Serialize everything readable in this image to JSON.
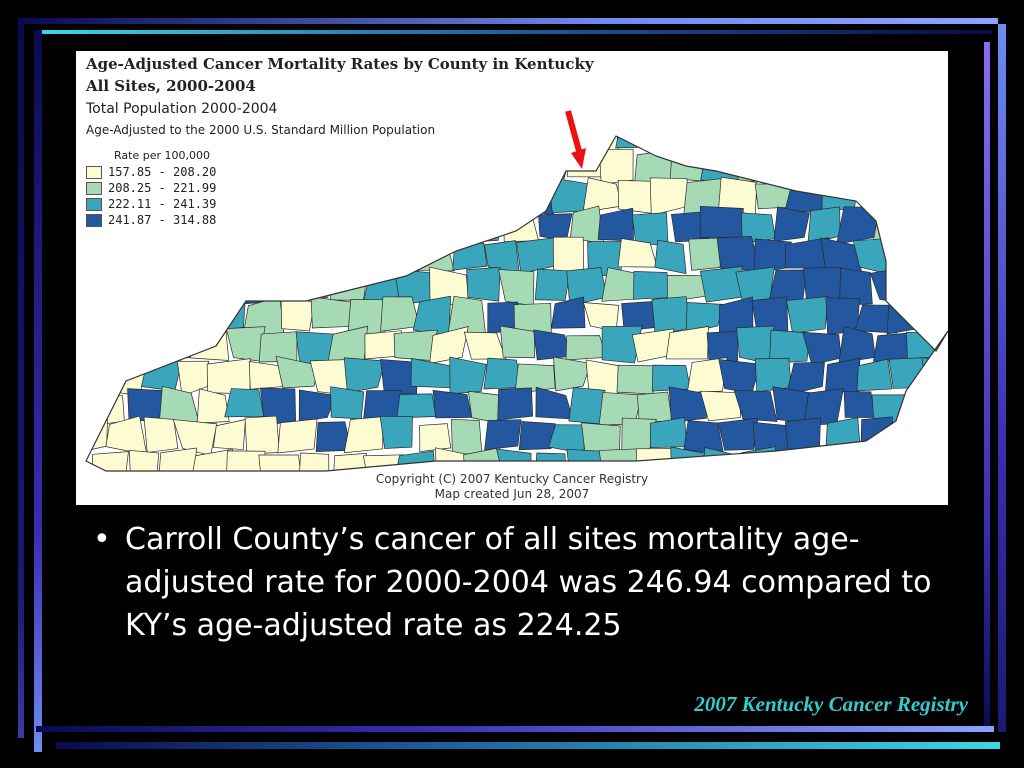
{
  "map": {
    "title_line1": "Age-Adjusted Cancer Mortality Rates by County in Kentucky",
    "title_line2": "All Sites, 2000-2004",
    "subtitle_line1": "Total Population 2000-2004",
    "subtitle_line2": "Age-Adjusted to the 2000 U.S. Standard Million Population",
    "legend_title": "Rate per 100,000",
    "legend": [
      {
        "range": "157.85 - 208.20",
        "color": "#fdfbd2"
      },
      {
        "range": "208.25 - 221.99",
        "color": "#a6dab5"
      },
      {
        "range": "222.11 - 241.39",
        "color": "#3aa6bb"
      },
      {
        "range": "241.87 - 314.88",
        "color": "#2358a0"
      }
    ],
    "copyright": "Copyright (C) 2007 Kentucky Cancer Registry",
    "created": "Map created Jun 28, 2007",
    "arrow_color": "#ee1111",
    "arrow_target": "Carroll County"
  },
  "bullet": {
    "symbol": "•",
    "text": "Carroll County’s cancer of all sites mortality age-adjusted rate for 2000-2004 was 246.94 compared to KY’s age-adjusted rate as 224.25"
  },
  "footer": "2007 Kentucky Cancer Registry",
  "frame_colors": {
    "light": "#6f8cf0",
    "mid": "#3b2db0",
    "dark": "#0a0a50",
    "cyan": "#3ad8e6"
  }
}
